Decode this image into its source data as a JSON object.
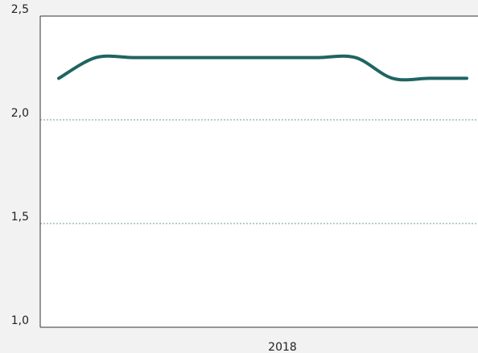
{
  "chart_data": {
    "type": "line",
    "xlabel": "2018",
    "categories": [
      null,
      null,
      null,
      null,
      null,
      null,
      null,
      null,
      null,
      null,
      null,
      null
    ],
    "series": [
      {
        "color": "#1f6463",
        "values": [
          2.2,
          2.3,
          2.3,
          2.3,
          2.3,
          2.3,
          2.3,
          2.3,
          2.3,
          2.2,
          2.2,
          2.2
        ]
      }
    ],
    "ylim": [
      1.0,
      2.5
    ],
    "yticks": [
      {
        "value": 1.0,
        "label": "1,0"
      },
      {
        "value": 1.5,
        "label": "1,5"
      },
      {
        "value": 2.0,
        "label": "2,0"
      },
      {
        "value": 2.5,
        "label": "2,5"
      }
    ],
    "grid": true
  }
}
